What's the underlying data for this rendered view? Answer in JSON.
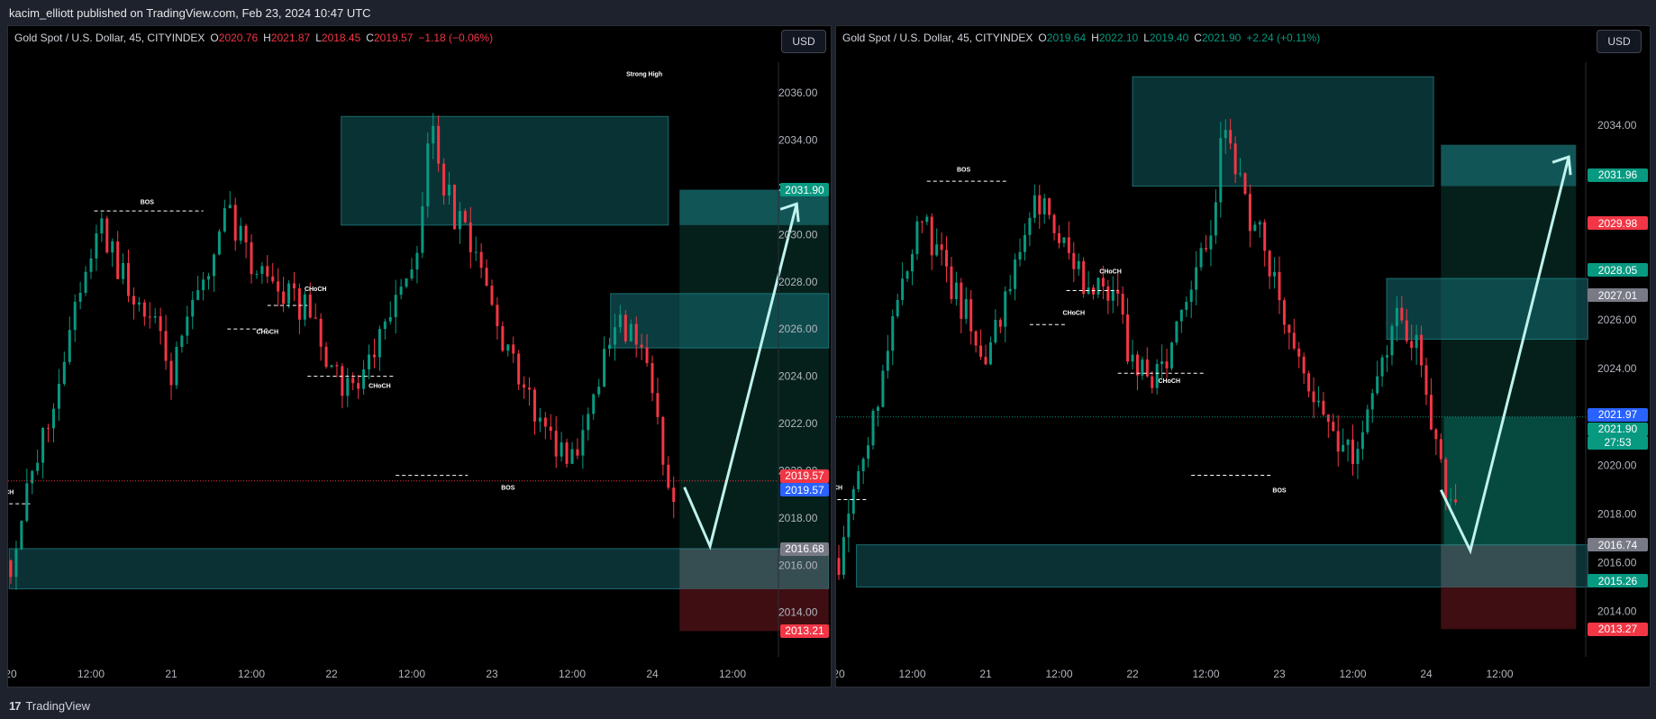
{
  "header": {
    "publisher_text": "kacim_elliott published on TradingView.com, Feb 23, 2024 10:47 UTC"
  },
  "footer": {
    "logo_text": "TradingView",
    "logo_mark": "17"
  },
  "chart_data": [
    {
      "type": "candlestick",
      "symbol": "Gold Spot / U.S. Dollar, 45, CITYINDEX",
      "ohlc": {
        "O": "2020.76",
        "H": "2021.87",
        "L": "2018.45",
        "C": "2019.57",
        "change": "−1.18 (−0.06%)"
      },
      "currency": "USD",
      "ylim": [
        2012.5,
        2037.3
      ],
      "y_ticks": [
        "2036.00",
        "2034.00",
        "2032.00",
        "2030.00",
        "2028.00",
        "2026.00",
        "2024.00",
        "2022.00",
        "2020.00",
        "2018.00",
        "2016.00",
        "2014.00"
      ],
      "x_ticks": [
        {
          "label": "20",
          "pos": 0.0
        },
        {
          "label": "12:00",
          "pos": 0.5
        },
        {
          "label": "21",
          "pos": 1.0
        },
        {
          "label": "12:00",
          "pos": 1.5
        },
        {
          "label": "22",
          "pos": 2.0
        },
        {
          "label": "12:00",
          "pos": 2.5
        },
        {
          "label": "23",
          "pos": 3.0
        },
        {
          "label": "12:00",
          "pos": 3.5
        },
        {
          "label": "24",
          "pos": 4.0
        },
        {
          "label": "12:00",
          "pos": 4.5
        }
      ],
      "price_tags": [
        {
          "value": "2031.90",
          "y": 2031.9,
          "color": "#089981"
        },
        {
          "value": "2019.57",
          "y": 2019.78,
          "color": "#f23645"
        },
        {
          "value": "2019.57",
          "y": 2019.18,
          "color": "#2962ff"
        },
        {
          "value": "2016.68",
          "y": 2016.68,
          "color": "#787b86"
        },
        {
          "value": "2013.21",
          "y": 2013.21,
          "color": "#f23645"
        }
      ],
      "annotations": [
        {
          "text": "Strong High",
          "x": 3.95,
          "y": 2036.7
        },
        {
          "text": "BOS",
          "x": 0.85,
          "y": 2031.3
        },
        {
          "text": "CHoCH",
          "x": 1.6,
          "y": 2025.8
        },
        {
          "text": "CHoCH",
          "x": 1.9,
          "y": 2027.6
        },
        {
          "text": "CHoCH",
          "x": 2.3,
          "y": 2023.5
        },
        {
          "text": "BOS",
          "x": 3.1,
          "y": 2019.2
        },
        {
          "text": "CHoCH",
          "x": -0.05,
          "y": 2019.0
        }
      ]
    },
    {
      "type": "candlestick",
      "symbol": "Gold Spot / U.S. Dollar, 45, CITYINDEX",
      "ohlc": {
        "O": "2019.64",
        "H": "2022.10",
        "L": "2019.40",
        "C": "2021.90",
        "change": "+2.24 (+0.11%)"
      },
      "currency": "USD",
      "ylim": [
        2012.5,
        2036.6
      ],
      "y_ticks": [
        "2034.00",
        "2032.00",
        "2030.00",
        "2028.00",
        "2026.00",
        "2024.00",
        "2022.00",
        "2020.00",
        "2018.00",
        "2016.00",
        "2014.00"
      ],
      "x_ticks": [
        {
          "label": "20",
          "pos": 0.0
        },
        {
          "label": "12:00",
          "pos": 0.5
        },
        {
          "label": "21",
          "pos": 1.0
        },
        {
          "label": "12:00",
          "pos": 1.5
        },
        {
          "label": "22",
          "pos": 2.0
        },
        {
          "label": "12:00",
          "pos": 2.5
        },
        {
          "label": "23",
          "pos": 3.0
        },
        {
          "label": "12:00",
          "pos": 3.5
        },
        {
          "label": "24",
          "pos": 4.0
        },
        {
          "label": "12:00",
          "pos": 4.5
        }
      ],
      "price_tags": [
        {
          "value": "2031.96",
          "y": 2031.96,
          "color": "#089981"
        },
        {
          "value": "2029.98",
          "y": 2029.98,
          "color": "#f23645"
        },
        {
          "value": "2028.05",
          "y": 2028.05,
          "color": "#089981"
        },
        {
          "value": "2027.01",
          "y": 2027.01,
          "color": "#787b86"
        },
        {
          "value": "2021.97",
          "y": 2022.1,
          "color": "#2962ff"
        },
        {
          "value": "2021.90",
          "y": 2021.5,
          "color": "#089981"
        },
        {
          "value": "27:53",
          "y": 2020.95,
          "color": "#089981"
        },
        {
          "value": "2016.74",
          "y": 2016.74,
          "color": "#787b86"
        },
        {
          "value": "2015.26",
          "y": 2015.26,
          "color": "#089981"
        },
        {
          "value": "2013.27",
          "y": 2013.27,
          "color": "#f23645"
        }
      ],
      "annotations": [
        {
          "text": "BOS",
          "x": 0.85,
          "y": 2032.1
        },
        {
          "text": "CHoCH",
          "x": 1.6,
          "y": 2026.2
        },
        {
          "text": "CHoCH",
          "x": 1.85,
          "y": 2027.9
        },
        {
          "text": "CHoCH",
          "x": 2.25,
          "y": 2023.4
        },
        {
          "text": "BOS",
          "x": 3.0,
          "y": 2018.9
        },
        {
          "text": "CHoCH",
          "x": -0.05,
          "y": 2019.0
        }
      ]
    }
  ]
}
